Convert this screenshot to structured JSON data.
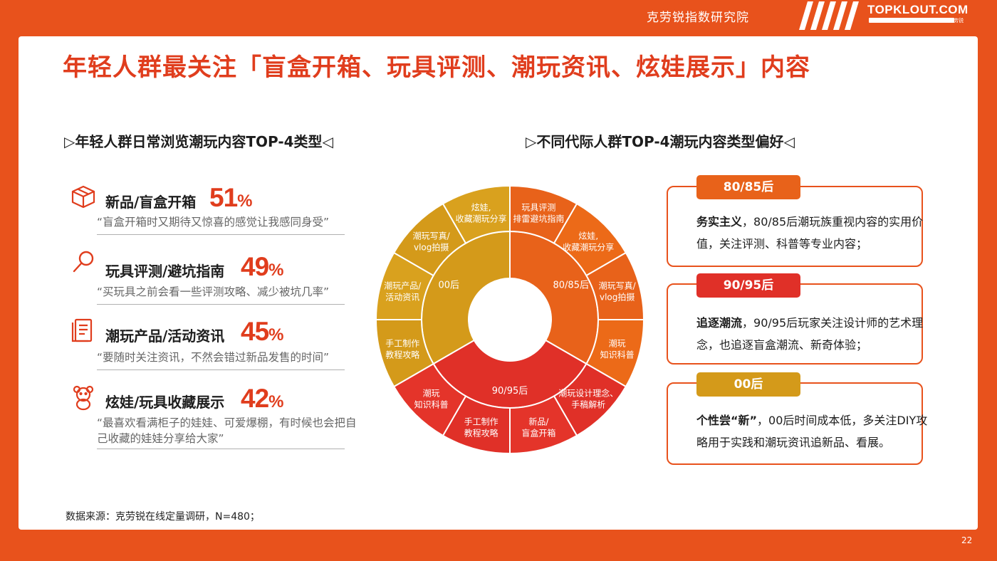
{
  "header": {
    "institute": "克劳锐指数研究院",
    "brand": "TOPKLOUT.COM",
    "brand_sub": "克劳锐"
  },
  "title": "年轻人群最关注「盲盒开箱、玩具评测、潮玩资讯、炫娃展示」内容",
  "left_section": {
    "heading": "▷年轻人群日常浏览潮玩内容TOP-4类型◁",
    "items": [
      {
        "icon": "gift-box-icon",
        "title": "新品/盲盒开箱",
        "pct_num": "51",
        "pct_unit": "%",
        "quote": "“盲盒开箱时又期待又惊喜的感觉让我感同身受”"
      },
      {
        "icon": "magnifier-icon",
        "title": "玩具评测/避坑指南",
        "pct_num": "49",
        "pct_unit": "%",
        "quote": "“买玩具之前会看一些评测攻略、减少被坑几率”"
      },
      {
        "icon": "document-icon",
        "title": "潮玩产品/活动资讯",
        "pct_num": "45",
        "pct_unit": "%",
        "quote": "“要随时关注资讯，不然会错过新品发售的时间”"
      },
      {
        "icon": "teddy-bear-icon",
        "title": "炫娃/玩具收藏展示",
        "pct_num": "42",
        "pct_unit": "%",
        "quote": "“最喜欢看满柜子的娃娃、可爱爆棚，有时候也会把自己收藏的娃娃分享给大家”"
      }
    ]
  },
  "right_section": {
    "heading": "▷不同代际人群TOP-4潮玩内容类型偏好◁",
    "groups": [
      {
        "tag": "80/85后",
        "tag_color": "#e8521c",
        "lead": "务实主义",
        "text": "，80/85后潮玩族重视内容的实用价值，关注评测、科普等专业内容；"
      },
      {
        "tag": "90/95后",
        "tag_color": "#e03028",
        "lead": "追逐潮流",
        "text": "，90/95后玩家关注设计师的艺术理念，也追逐盲盒潮流、新奇体验；"
      },
      {
        "tag": "00后",
        "tag_color": "#d49a1a",
        "lead": "个性尝“新”",
        "text": "，00后时间成本低，多关注DIY攻略用于实践和潮玩资讯追新品、看展。"
      }
    ]
  },
  "chart_data": {
    "type": "sunburst",
    "title": "",
    "colors": {
      "80/85后": "#e8621a",
      "90/95后": "#e03028",
      "00后": "#d49a1a"
    },
    "inner": [
      {
        "name": "80/85后",
        "value": 4
      },
      {
        "name": "90/95后",
        "value": 4
      },
      {
        "name": "00后",
        "value": 4
      }
    ],
    "outer": [
      {
        "parent": "80/85后",
        "label": [
          "玩具评测",
          "排雷避坑指南"
        ],
        "value": 1
      },
      {
        "parent": "80/85后",
        "label": [
          "炫娃,",
          "收藏潮玩分享"
        ],
        "value": 1
      },
      {
        "parent": "80/85后",
        "label": [
          "潮玩写真/",
          "vlog拍摄"
        ],
        "value": 1
      },
      {
        "parent": "80/85后",
        "label": [
          "潮玩",
          "知识科普"
        ],
        "value": 1
      },
      {
        "parent": "90/95后",
        "label": [
          "潮玩设计理念、",
          "手稿解析"
        ],
        "value": 1
      },
      {
        "parent": "90/95后",
        "label": [
          "新品/",
          "盲盒开箱"
        ],
        "value": 1
      },
      {
        "parent": "90/95后",
        "label": [
          "手工制作",
          "教程攻略"
        ],
        "value": 1
      },
      {
        "parent": "90/95后",
        "label": [
          "潮玩",
          "知识科普"
        ],
        "value": 1
      },
      {
        "parent": "00后",
        "label": [
          "手工制作",
          "教程攻略"
        ],
        "value": 1
      },
      {
        "parent": "00后",
        "label": [
          "潮玩产品/",
          "活动资讯"
        ],
        "value": 1
      },
      {
        "parent": "00后",
        "label": [
          "潮玩写真/",
          "vlog拍摄"
        ],
        "value": 1
      },
      {
        "parent": "00后",
        "label": [
          "炫娃,",
          "收藏潮玩分享"
        ],
        "value": 1
      }
    ]
  },
  "source": "数据来源：克劳锐在线定量调研，N=480；",
  "page_number": "22"
}
